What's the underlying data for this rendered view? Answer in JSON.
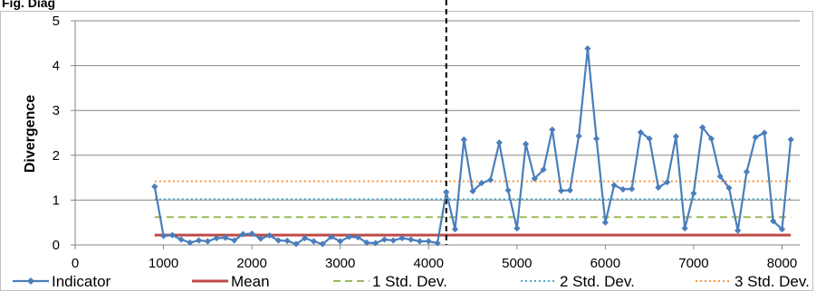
{
  "top_text": "Fig. Diag",
  "chart_data": {
    "type": "line",
    "ylabel": "Divergence",
    "xlim": [
      0,
      8200
    ],
    "ylim": [
      0,
      5
    ],
    "xticks": [
      0,
      1000,
      2000,
      3000,
      4000,
      5000,
      6000,
      7000,
      8000
    ],
    "yticks": [
      0,
      1,
      2,
      3,
      4,
      5
    ],
    "grid": "horizontal",
    "change_point_x": 4200,
    "series": [
      {
        "name": "Indicator",
        "color": "#4a7ebb",
        "marker": "diamond",
        "x": [
          900,
          1000,
          1100,
          1200,
          1300,
          1400,
          1500,
          1600,
          1700,
          1800,
          1900,
          2000,
          2100,
          2200,
          2300,
          2400,
          2500,
          2600,
          2700,
          2800,
          2900,
          3000,
          3100,
          3200,
          3300,
          3400,
          3500,
          3600,
          3700,
          3800,
          3900,
          4000,
          4100,
          4200,
          4300,
          4400,
          4500,
          4600,
          4700,
          4800,
          4900,
          5000,
          5100,
          5200,
          5300,
          5400,
          5500,
          5600,
          5700,
          5800,
          5900,
          6000,
          6100,
          6200,
          6300,
          6400,
          6500,
          6600,
          6700,
          6800,
          6900,
          7000,
          7100,
          7200,
          7300,
          7400,
          7500,
          7600,
          7700,
          7800,
          7900,
          8000,
          8100
        ],
        "y": [
          1.3,
          0.2,
          0.22,
          0.12,
          0.05,
          0.1,
          0.08,
          0.15,
          0.16,
          0.1,
          0.24,
          0.25,
          0.14,
          0.21,
          0.1,
          0.09,
          0.02,
          0.15,
          0.08,
          0.02,
          0.18,
          0.08,
          0.18,
          0.17,
          0.05,
          0.04,
          0.12,
          0.1,
          0.15,
          0.12,
          0.08,
          0.08,
          0.04,
          1.18,
          0.35,
          2.35,
          1.2,
          1.38,
          1.45,
          2.28,
          1.22,
          0.37,
          2.25,
          1.48,
          1.68,
          2.57,
          1.21,
          1.22,
          2.43,
          4.38,
          2.37,
          0.5,
          1.33,
          1.24,
          1.25,
          2.51,
          2.37,
          1.28,
          1.4,
          2.42,
          0.37,
          1.15,
          2.62,
          2.37,
          1.53,
          1.27,
          0.32,
          1.63,
          2.4,
          2.5,
          0.53,
          0.35,
          2.35
        ]
      },
      {
        "name": "Mean",
        "color": "#be4b48",
        "style": "solid",
        "y_value": 0.22
      },
      {
        "name": "1 Std. Dev.",
        "color": "#9bbb59",
        "style": "dashed",
        "y_value": 0.62
      },
      {
        "name": "2 Std. Dev.",
        "color": "#4bacc6",
        "style": "dotted",
        "y_value": 1.02
      },
      {
        "name": "3 Std. Dev.",
        "color": "#f79646",
        "style": "dotted",
        "y_value": 1.42
      }
    ],
    "legend_position": "bottom"
  }
}
